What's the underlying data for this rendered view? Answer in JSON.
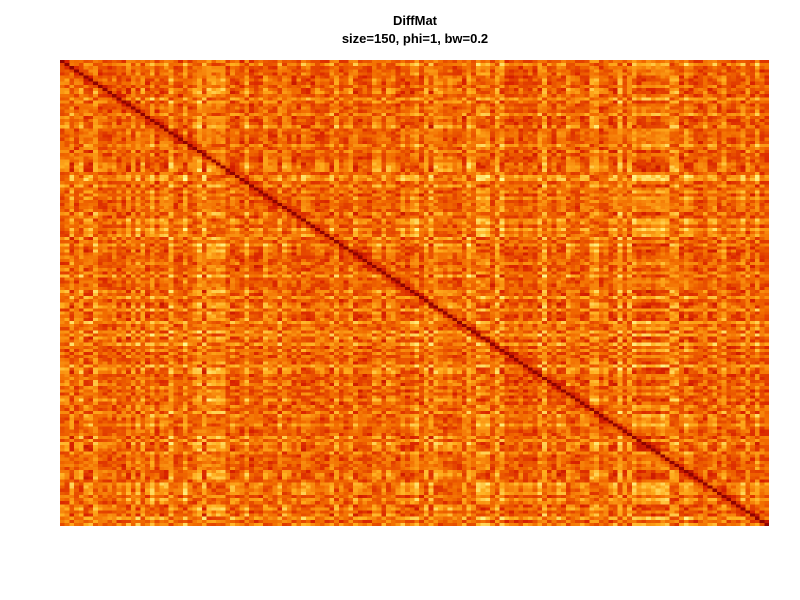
{
  "chart_data": {
    "type": "heatmap",
    "title": "DiffMat",
    "subtitle": "size=150, phi=1, bw=0.2",
    "xlabel": "",
    "ylabel": "",
    "n_rows": 150,
    "n_cols": 150,
    "diagonal": "dark red band from top-left to bottom-right",
    "color_scale": {
      "name": "heat",
      "low": "#8b0000",
      "mid_low": "#d82000",
      "mid": "#f26c00",
      "mid_high": "#ffae1e",
      "high": "#ffff99"
    },
    "axes": "none",
    "legend": "none"
  }
}
